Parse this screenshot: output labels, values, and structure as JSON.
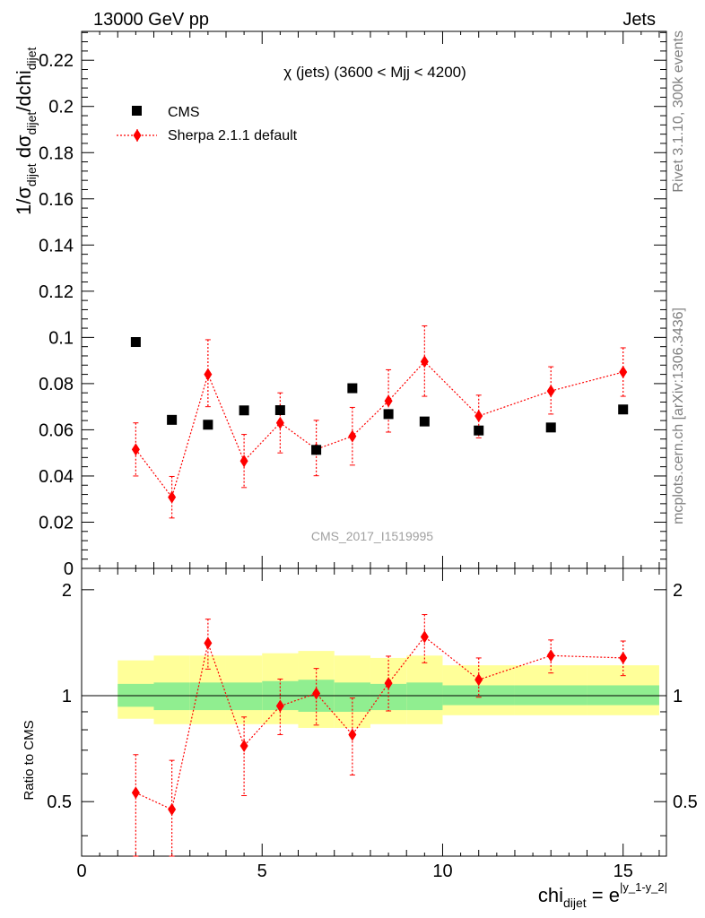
{
  "header": {
    "left": "13000 GeV pp",
    "right": "Jets"
  },
  "side_text": {
    "rivet": "Rivet 3.1.10,  300k events",
    "mcplots": "mcplots.cern.ch [arXiv:1306.3436]"
  },
  "chart_data": [
    {
      "type": "scatter",
      "title": "χ (jets) (3600 < Mjj < 4200)",
      "ylabel": {
        "prefix": "1/σ",
        "sub1": "dijet",
        "mid": " dσ",
        "sub2": "dijet",
        "suffix": "/dchi",
        "sub3": "dijet"
      },
      "xlabel": {
        "main": "chi",
        "sub": "dijet",
        "eq": " = e",
        "sup": "|y_1-y_2|"
      },
      "watermark": "CMS_2017_I1519995",
      "xlim": [
        0,
        16.2
      ],
      "ylim": [
        0,
        0.2325
      ],
      "yticks": [
        "0",
        "0.02",
        "0.04",
        "0.06",
        "0.08",
        "0.1",
        "0.12",
        "0.14",
        "0.16",
        "0.18",
        "0.2",
        "0.22"
      ],
      "ytick_values": [
        0,
        0.02,
        0.04,
        0.06,
        0.08,
        0.1,
        0.12,
        0.14,
        0.16,
        0.18,
        0.2,
        0.22
      ],
      "series": [
        {
          "name": "CMS",
          "marker": "square",
          "color": "#000000",
          "x": [
            1.5,
            2.5,
            3.5,
            4.5,
            5.5,
            6.5,
            7.5,
            8.5,
            9.5,
            11,
            13,
            15
          ],
          "y": [
            0.098,
            0.0643,
            0.0622,
            0.0684,
            0.0685,
            0.0513,
            0.078,
            0.0668,
            0.0636,
            0.0597,
            0.061,
            0.0688
          ]
        },
        {
          "name": "Sherpa 2.1.1 default",
          "marker": "diamond",
          "color": "#ff0000",
          "line": "dotted",
          "x": [
            1.5,
            2.5,
            3.5,
            4.5,
            5.5,
            6.5,
            7.5,
            8.5,
            9.5,
            11,
            13,
            15
          ],
          "y": [
            0.0515,
            0.0308,
            0.084,
            0.0465,
            0.063,
            0.0516,
            0.0572,
            0.0725,
            0.0895,
            0.066,
            0.0768,
            0.085
          ],
          "err_lo": [
            0.0115,
            0.009,
            0.014,
            0.0115,
            0.013,
            0.0115,
            0.0125,
            0.0135,
            0.015,
            0.0095,
            0.01,
            0.0105
          ],
          "err_hi": [
            0.0115,
            0.009,
            0.015,
            0.0115,
            0.013,
            0.0125,
            0.0125,
            0.0135,
            0.0155,
            0.009,
            0.0105,
            0.0105
          ]
        }
      ]
    },
    {
      "type": "scatter",
      "ylabel": "Ratio to CMS",
      "xlim": [
        0,
        16.2
      ],
      "ylim": [
        0.35,
        2.3
      ],
      "yticks": [
        "0.5",
        "1",
        "2"
      ],
      "ytick_values": [
        0.5,
        1,
        2
      ],
      "xticks": [
        "0",
        "5",
        "10",
        "15"
      ],
      "xtick_values": [
        0,
        5,
        10,
        15
      ],
      "bands": {
        "x_edges": [
          1,
          2,
          3,
          4,
          5,
          6,
          7,
          8,
          9,
          10,
          12,
          14,
          16
        ],
        "inner": {
          "color": "#90ee90",
          "lo": [
            0.93,
            0.91,
            0.91,
            0.91,
            0.91,
            0.9,
            0.9,
            0.91,
            0.91,
            0.94,
            0.94,
            0.94
          ],
          "hi": [
            1.08,
            1.09,
            1.09,
            1.09,
            1.1,
            1.11,
            1.09,
            1.08,
            1.09,
            1.07,
            1.07,
            1.07
          ]
        },
        "outer": {
          "color": "#ffff99",
          "lo": [
            0.86,
            0.83,
            0.83,
            0.83,
            0.83,
            0.81,
            0.81,
            0.83,
            0.83,
            0.88,
            0.88,
            0.88
          ],
          "hi": [
            1.26,
            1.3,
            1.3,
            1.3,
            1.32,
            1.34,
            1.3,
            1.28,
            1.3,
            1.22,
            1.22,
            1.22
          ]
        }
      },
      "series": [
        {
          "name": "Sherpa 2.1.1 default",
          "marker": "diamond",
          "color": "#ff0000",
          "line": "dotted",
          "x": [
            1.5,
            2.5,
            3.5,
            4.5,
            5.5,
            6.5,
            7.5,
            8.5,
            9.5,
            11,
            13,
            15
          ],
          "y": [
            0.53,
            0.475,
            1.41,
            0.72,
            0.935,
            1.015,
            0.775,
            1.085,
            1.47,
            1.11,
            1.3,
            1.28
          ],
          "err_lo": [
            0.2,
            0.16,
            0.22,
            0.2,
            0.16,
            0.19,
            0.18,
            0.18,
            0.23,
            0.12,
            0.14,
            0.14
          ],
          "err_hi": [
            0.15,
            0.18,
            0.24,
            0.15,
            0.18,
            0.18,
            0.21,
            0.21,
            0.23,
            0.17,
            0.14,
            0.15
          ]
        }
      ]
    }
  ]
}
